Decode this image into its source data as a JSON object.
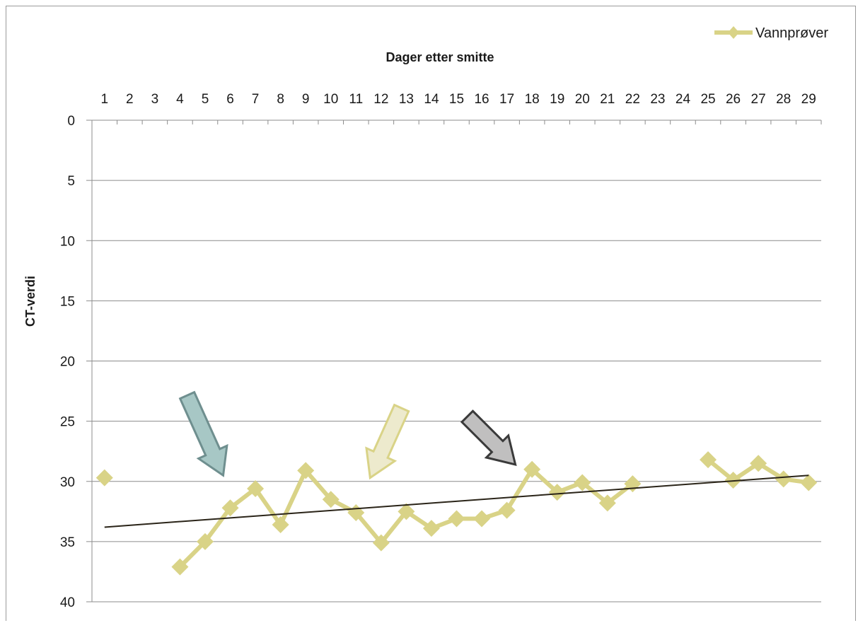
{
  "chart_data": {
    "type": "line",
    "xlabel": "Dager etter smitte",
    "ylabel": "CT-verdi",
    "x_axis_position": "top",
    "y_axis_inverted": true,
    "ylim": [
      0,
      40
    ],
    "y_ticks": [
      0,
      5,
      10,
      15,
      20,
      25,
      30,
      35,
      40
    ],
    "categories": [
      "1",
      "2",
      "3",
      "4",
      "5",
      "6",
      "7",
      "8",
      "9",
      "10",
      "11",
      "12",
      "13",
      "14",
      "15",
      "16",
      "17",
      "18",
      "19",
      "20",
      "21",
      "22",
      "23",
      "24",
      "25",
      "26",
      "27",
      "28",
      "29"
    ],
    "series": [
      {
        "name": "Vannprøver",
        "color": "#d9d387",
        "marker": "diamond",
        "values": [
          29.7,
          null,
          null,
          37.1,
          35.0,
          32.2,
          30.6,
          33.6,
          29.1,
          31.5,
          32.6,
          35.1,
          32.5,
          33.9,
          33.1,
          33.1,
          32.4,
          29.0,
          30.9,
          30.1,
          31.8,
          30.2,
          null,
          null,
          28.2,
          29.9,
          28.5,
          29.8,
          30.1
        ]
      }
    ],
    "trendline": {
      "color": "#2a2418",
      "start": {
        "x": "1",
        "y": 33.8
      },
      "end": {
        "x": "29",
        "y": 29.5
      }
    },
    "annotations": [
      {
        "type": "arrow",
        "color": "#a7c7c5",
        "stroke": "#6f8f8f",
        "target_x": "6",
        "target_y": 29.5
      },
      {
        "type": "arrow",
        "color": "#edeacd",
        "stroke": "#d9d387",
        "target_x": "11",
        "target_y": 29.7
      },
      {
        "type": "arrow",
        "color": "#c0bfbf",
        "stroke": "#3a3a3a",
        "target_x": "17",
        "target_y": 28.6
      }
    ],
    "grid": true,
    "legend": {
      "position": "top-right"
    }
  }
}
